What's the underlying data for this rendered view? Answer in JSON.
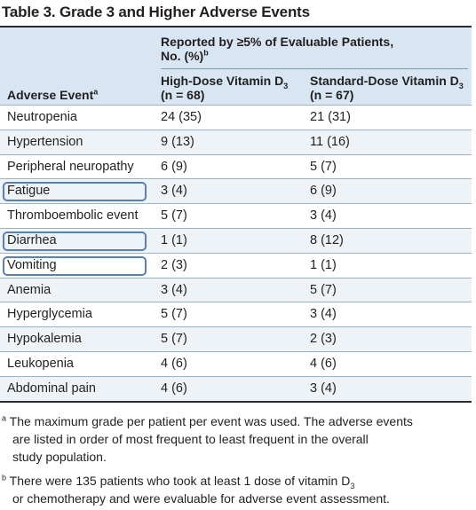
{
  "title": "Table 3. Grade 3 and Higher Adverse Events",
  "header": {
    "span_label_line1": "Reported by ≥5% of Evaluable Patients,",
    "span_label_line2": "No. (%)",
    "span_label_sup": "b",
    "event_label": "Adverse Event",
    "event_sup": "a",
    "col1_line1": "High-Dose Vitamin D",
    "col1_sub": "3",
    "col1_line2": "(n = 68)",
    "col2_line1": "Standard-Dose Vitamin D",
    "col2_sub": "3",
    "col2_line2": "(n = 67)"
  },
  "rows": [
    {
      "event": "Neutropenia",
      "high": "24 (35)",
      "standard": "21 (31)"
    },
    {
      "event": "Hypertension",
      "high": "9 (13)",
      "standard": "11 (16)"
    },
    {
      "event": "Peripheral neuropathy",
      "high": "6 (9)",
      "standard": "5 (7)"
    },
    {
      "event": "Fatigue",
      "high": "3 (4)",
      "standard": "6 (9)"
    },
    {
      "event": "Thromboembolic event",
      "high": "5 (7)",
      "standard": "3 (4)"
    },
    {
      "event": "Diarrhea",
      "high": "1 (1)",
      "standard": "8 (12)"
    },
    {
      "event": "Vomiting",
      "high": "2 (3)",
      "standard": "1 (1)"
    },
    {
      "event": "Anemia",
      "high": "3 (4)",
      "standard": "5 (7)"
    },
    {
      "event": "Hyperglycemia",
      "high": "5 (7)",
      "standard": "3 (4)"
    },
    {
      "event": "Hypokalemia",
      "high": "5 (7)",
      "standard": "2 (3)"
    },
    {
      "event": "Leukopenia",
      "high": "4 (6)",
      "standard": "4 (6)"
    },
    {
      "event": "Abdominal pain",
      "high": "4 (6)",
      "standard": "3 (4)"
    }
  ],
  "footnotes": {
    "a_mark": "a",
    "a_line1": "The maximum grade per patient per event was used. The adverse events",
    "a_line2": "are listed in order of most frequent to least frequent in the overall",
    "a_line3": "study population.",
    "b_mark": "b",
    "b_line1": "There were 135 patients who took at least 1 dose of vitamin D",
    "b_sub": "3",
    "b_line2": "or chemotherapy and were evaluable for adverse event assessment."
  },
  "colors": {
    "header_bg": "#d7e6f2",
    "row_shade": "#eef3f8",
    "highlight_border": "#5a7fb3"
  }
}
